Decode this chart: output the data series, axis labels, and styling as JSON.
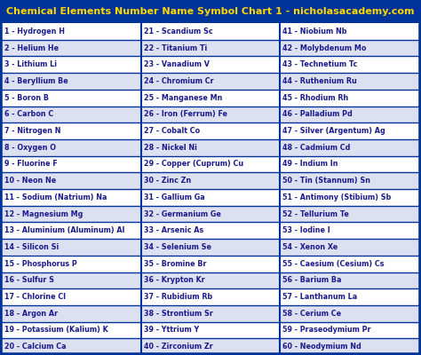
{
  "title": "Chemical Elements Number Name Symbol Chart 1 - nicholasacademy.com",
  "title_bg": "#003399",
  "title_color": "#FFD700",
  "table_bg_odd": "#FFFFFF",
  "table_bg_even": "#dde0f0",
  "border_color": "#003399",
  "text_color": "#1a1a8c",
  "col1": [
    "1 - Hydrogen H",
    "2 - Helium He",
    "3 - Lithium Li",
    "4 - Beryllium Be",
    "5 - Boron B",
    "6 - Carbon C",
    "7 - Nitrogen N",
    "8 - Oxygen O",
    "9 - Fluorine F",
    "10 - Neon Ne",
    "11 - Sodium (Natrium) Na",
    "12 - Magnesium Mg",
    "13 - Aluminium (Aluminum) Al",
    "14 - Silicon Si",
    "15 - Phosphorus P",
    "16 - Sulfur S",
    "17 - Chlorine Cl",
    "18 - Argon Ar",
    "19 - Potassium (Kalium) K",
    "20 - Calcium Ca"
  ],
  "col2": [
    "21 - Scandium Sc",
    "22 - Titanium Ti",
    "23 - Vanadium V",
    "24 - Chromium Cr",
    "25 - Manganese Mn",
    "26 - Iron (Ferrum) Fe",
    "27 - Cobalt Co",
    "28 - Nickel Ni",
    "29 - Copper (Cuprum) Cu",
    "30 - Zinc Zn",
    "31 - Gallium Ga",
    "32 - Germanium Ge",
    "33 - Arsenic As",
    "34 - Selenium Se",
    "35 - Bromine Br",
    "36 - Krypton Kr",
    "37 - Rubidium Rb",
    "38 - Strontium Sr",
    "39 - Yttrium Y",
    "40 - Zirconium Zr"
  ],
  "col3": [
    "41 - Niobium Nb",
    "42 - Molybdenum Mo",
    "43 - Technetium Tc",
    "44 - Ruthenium Ru",
    "45 - Rhodium Rh",
    "46 - Palladium Pd",
    "47 - Silver (Argentum) Ag",
    "48 - Cadmium Cd",
    "49 - Indium In",
    "50 - Tin (Stannum) Sn",
    "51 - Antimony (Stibium) Sb",
    "52 - Tellurium Te",
    "53 - Iodine I",
    "54 - Xenon Xe",
    "55 - Caesium (Cesium) Cs",
    "56 - Barium Ba",
    "57 - Lanthanum La",
    "58 - Cerium Ce",
    "59 - Praseodymium Pr",
    "60 - Neodymium Nd"
  ],
  "font_size": 5.8,
  "title_font_size": 8.0,
  "fig_width": 4.74,
  "fig_height": 4.0,
  "dpi": 100
}
